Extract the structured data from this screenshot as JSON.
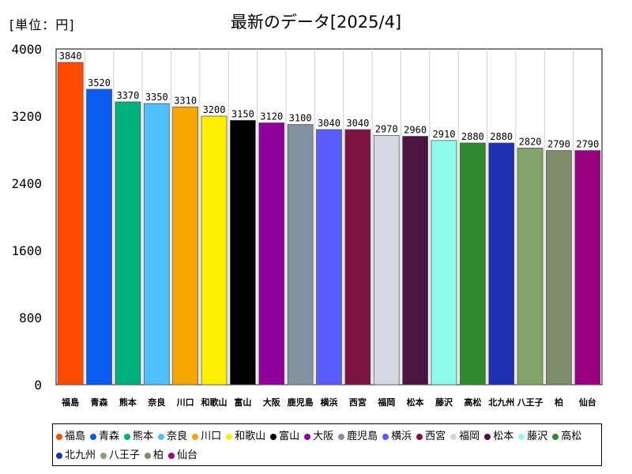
{
  "unit_label": "[単位：円]",
  "chart_data": {
    "type": "bar",
    "title": "最新のデータ[2025/4]",
    "xlabel": "",
    "ylabel": "",
    "ylim": [
      0,
      4000
    ],
    "yticks": [
      0,
      800,
      1600,
      2400,
      3200,
      4000
    ],
    "grid": false,
    "legend_position": "bottom",
    "categories": [
      "福島",
      "青森",
      "熊本",
      "奈良",
      "川口",
      "和歌山",
      "富山",
      "大阪",
      "鹿児島",
      "横浜",
      "西宮",
      "福岡",
      "松本",
      "藤沢",
      "高松",
      "北九州",
      "八王子",
      "柏",
      "仙台"
    ],
    "values": [
      3840,
      3520,
      3370,
      3350,
      3310,
      3200,
      3150,
      3120,
      3100,
      3040,
      3040,
      2970,
      2960,
      2910,
      2880,
      2880,
      2820,
      2790,
      2790
    ],
    "colors": [
      "#ff4a00",
      "#0a5bf0",
      "#00b07c",
      "#4fc0ff",
      "#f5a600",
      "#ffee00",
      "#000000",
      "#8e0099",
      "#8292a0",
      "#5a5cff",
      "#7c1442",
      "#d8d8e4",
      "#4a1540",
      "#8ffbea",
      "#2f8a2f",
      "#1d2fb2",
      "#82a46a",
      "#7f8c6c",
      "#990080"
    ]
  }
}
